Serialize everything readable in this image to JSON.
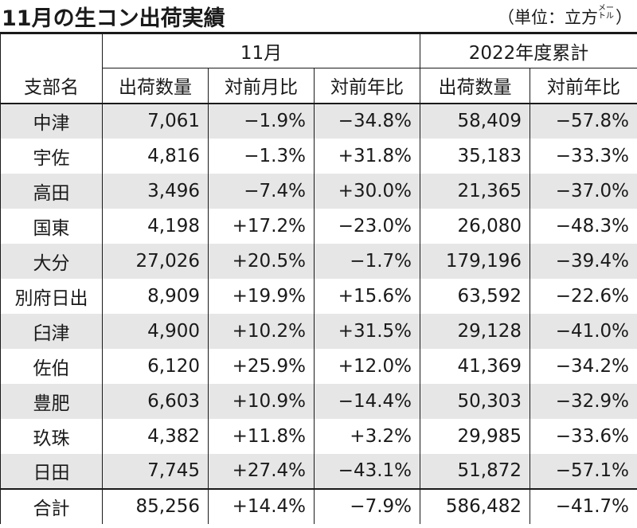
{
  "header": {
    "title": "11月の生コン出荷実績",
    "unit_prefix": "（単位：立方",
    "unit_small": "メートル",
    "unit_suffix": "）"
  },
  "table": {
    "group_headers": [
      "11月",
      "2022年度累計"
    ],
    "columns": [
      "支部名",
      "出荷数量",
      "対前月比",
      "対前年比",
      "出荷数量",
      "対前年比"
    ],
    "rows": [
      [
        "中津",
        "7,061",
        "−1.9%",
        "−34.8%",
        "58,409",
        "−57.8%"
      ],
      [
        "宇佐",
        "4,816",
        "−1.3%",
        "+31.8%",
        "35,183",
        "−33.3%"
      ],
      [
        "高田",
        "3,496",
        "−7.4%",
        "+30.0%",
        "21,365",
        "−37.0%"
      ],
      [
        "国東",
        "4,198",
        "+17.2%",
        "−23.0%",
        "26,080",
        "−48.3%"
      ],
      [
        "大分",
        "27,026",
        "+20.5%",
        "−1.7%",
        "179,196",
        "−39.4%"
      ],
      [
        "別府日出",
        "8,909",
        "+19.9%",
        "+15.6%",
        "63,592",
        "−22.6%"
      ],
      [
        "臼津",
        "4,900",
        "+10.2%",
        "+31.5%",
        "29,128",
        "−41.0%"
      ],
      [
        "佐伯",
        "6,120",
        "+25.9%",
        "+12.0%",
        "41,369",
        "−34.2%"
      ],
      [
        "豊肥",
        "6,603",
        "+10.9%",
        "−14.4%",
        "50,303",
        "−32.9%"
      ],
      [
        "玖珠",
        "4,382",
        "+11.8%",
        "+3.2%",
        "29,985",
        "−33.6%"
      ],
      [
        "日田",
        "7,745",
        "+27.4%",
        "−43.1%",
        "51,872",
        "−57.1%"
      ]
    ],
    "total": [
      "合計",
      "85,256",
      "+14.4%",
      "−7.9%",
      "586,482",
      "−41.7%"
    ]
  },
  "colors": {
    "shade": "#e6e6e6",
    "text": "#1a1a1a",
    "background": "#ffffff"
  }
}
